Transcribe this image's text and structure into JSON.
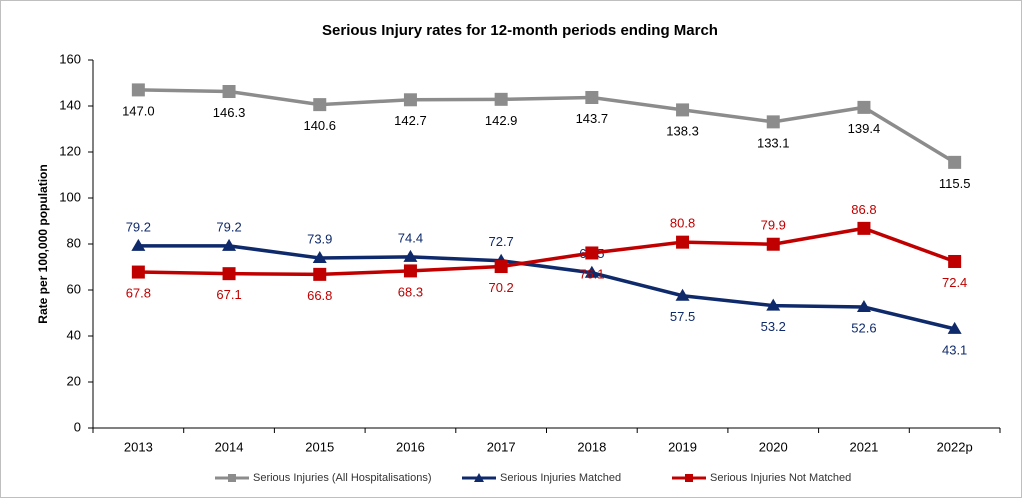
{
  "chart_data": {
    "type": "line",
    "title": "Serious Injury rates for 12-month periods ending March",
    "y_label": "Rate per 100,000 population",
    "categories": [
      "2013",
      "2014",
      "2015",
      "2016",
      "2017",
      "2018",
      "2019",
      "2020",
      "2021",
      "2022p"
    ],
    "ylim": [
      0,
      160
    ],
    "yticks": [
      0,
      20,
      40,
      60,
      80,
      100,
      120,
      140,
      160
    ],
    "grid": false,
    "legend": "bottom",
    "series": [
      {
        "name": "Serious Injuries (All Hospitalisations)",
        "color": "#8c8c8c",
        "marker": "square",
        "values": [
          147.0,
          146.3,
          140.6,
          142.7,
          142.9,
          143.7,
          138.3,
          133.1,
          139.4,
          115.5
        ],
        "value_labels": [
          "147.0",
          "146.3",
          "140.6",
          "142.7",
          "142.9",
          "143.7",
          "138.3",
          "133.1",
          "139.4",
          "115.5"
        ]
      },
      {
        "name": "Serious Injuries Matched",
        "color": "#0f2a6b",
        "marker": "triangle",
        "values": [
          79.2,
          79.2,
          73.9,
          74.4,
          72.7,
          67.5,
          57.5,
          53.2,
          52.6,
          43.1
        ],
        "value_labels": [
          "79.2",
          "79.2",
          "73.9",
          "74.4",
          "72.7",
          "67.5",
          "57.5",
          "53.2",
          "52.6",
          "43.1"
        ]
      },
      {
        "name": "Serious Injuries Not Matched",
        "color": "#c00000",
        "marker": "square",
        "values": [
          67.8,
          67.1,
          66.8,
          68.3,
          70.2,
          76.1,
          80.8,
          79.9,
          86.8,
          72.4
        ],
        "value_labels": [
          "67.8",
          "67.1",
          "66.8",
          "68.3",
          "70.2",
          "76.1",
          "80.8",
          "79.9",
          "86.8",
          "72.4"
        ]
      }
    ]
  }
}
